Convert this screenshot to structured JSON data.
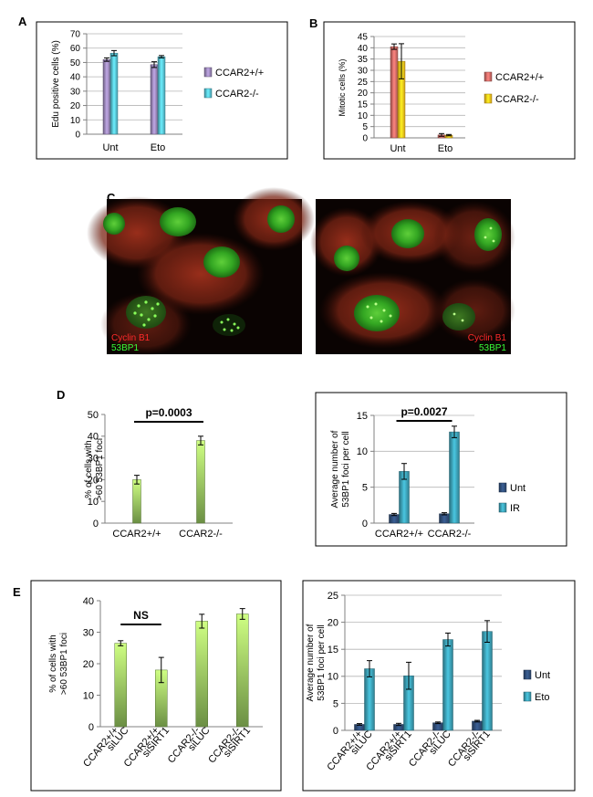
{
  "panels": {
    "A": "A",
    "B": "B",
    "C": "C",
    "D": "D",
    "E": "E"
  },
  "micrographs": {
    "left": {
      "label1": "Cyclin B1",
      "label2": "53BP1",
      "label1_color": "#ff2a2a",
      "label2_color": "#39ff39"
    },
    "right": {
      "label1": "Cyclin B1",
      "label2": "53BP1",
      "label1_color": "#ff2a2a",
      "label2_color": "#39ff39"
    }
  },
  "chart_data": [
    {
      "id": "A",
      "type": "bar",
      "ylabel": "Edu positive cells (%)",
      "ylim": [
        0,
        70
      ],
      "yticks": [
        0,
        10,
        20,
        30,
        40,
        50,
        60,
        70
      ],
      "grid": true,
      "categories": [
        "Unt",
        "Eto"
      ],
      "series": [
        {
          "name": "CCAR2+/+",
          "values": [
            52,
            48.5
          ],
          "errors": [
            1.2,
            2
          ],
          "color": "#9a86b8"
        },
        {
          "name": "CCAR2-/-",
          "values": [
            56.5,
            54
          ],
          "errors": [
            1.8,
            0.8
          ],
          "color": "#56c0d4"
        }
      ],
      "legend": "right"
    },
    {
      "id": "B",
      "type": "bar",
      "ylabel": "Mitotic cells (%)",
      "ylim": [
        0,
        45
      ],
      "yticks": [
        0,
        5,
        10,
        15,
        20,
        25,
        30,
        35,
        40,
        45
      ],
      "grid": true,
      "categories": [
        "Unt",
        "Eto"
      ],
      "series": [
        {
          "name": "CCAR2+/+",
          "values": [
            40.5,
            1.3
          ],
          "errors": [
            1.2,
            0.6
          ],
          "color": "#d06a66"
        },
        {
          "name": "CCAR2-/-",
          "values": [
            34,
            1.2
          ],
          "errors": [
            7.8,
            0.3
          ],
          "color": "#ffc21a"
        }
      ],
      "legend": "right"
    },
    {
      "id": "D1",
      "type": "bar",
      "ylabel": "% of cells with >60 53BP1 foci",
      "ylim": [
        0,
        50
      ],
      "yticks": [
        0,
        10,
        20,
        30,
        40,
        50
      ],
      "grid": false,
      "categories": [
        "CCAR2+/+",
        "CCAR2-/-"
      ],
      "series": [
        {
          "name": "",
          "values": [
            20,
            38
          ],
          "errors": [
            2,
            2
          ],
          "color": "#8fbf5a"
        }
      ],
      "annotation": {
        "text": "p=0.0003",
        "from": 0,
        "to": 1
      }
    },
    {
      "id": "D2",
      "type": "bar",
      "ylabel": "Average number of 53BP1 foci per cell",
      "ylim": [
        0,
        15
      ],
      "yticks": [
        0,
        5,
        10,
        15
      ],
      "grid": true,
      "categories": [
        "CCAR2+/+",
        "CCAR2-/-"
      ],
      "series": [
        {
          "name": "Unt",
          "values": [
            1.2,
            1.3
          ],
          "errors": [
            0.15,
            0.15
          ],
          "color": "#2f4d78"
        },
        {
          "name": "IR",
          "values": [
            7.2,
            12.7
          ],
          "errors": [
            1.1,
            0.8
          ],
          "color": "#3b9fb4"
        }
      ],
      "legend": "right",
      "annotation": {
        "text": "p=0.0027",
        "from": 0,
        "to": 1
      }
    },
    {
      "id": "E1",
      "type": "bar",
      "ylabel": "% of cells with >60 53BP1 foci",
      "ylim": [
        0,
        40
      ],
      "yticks": [
        0,
        10,
        20,
        30,
        40
      ],
      "grid": false,
      "categories": [
        "CCAR2+/+ siLUC",
        "CCAR2+/+ siSIRT1",
        "CCAR2-/- siLUC",
        "CCAR2-/- siSIRT1"
      ],
      "series": [
        {
          "name": "",
          "values": [
            26.5,
            18,
            33.5,
            35.8
          ],
          "errors": [
            0.8,
            4,
            2.2,
            1.7
          ],
          "color": "#8fbf5a"
        }
      ],
      "annotation": {
        "text": "NS",
        "from": 0,
        "to": 1
      }
    },
    {
      "id": "E2",
      "type": "bar",
      "ylabel": "Average number of 53BP1 foci per cell",
      "ylim": [
        0,
        25
      ],
      "yticks": [
        0,
        5,
        10,
        15,
        20,
        25
      ],
      "grid": true,
      "categories": [
        "CCAR2+/+ siLUC",
        "CCAR2+/+ siSIRT1",
        "CCAR2-/- siLUC",
        "CCAR2-/- siSIRT1"
      ],
      "series": [
        {
          "name": "Unt",
          "values": [
            1.1,
            1.1,
            1.4,
            1.7
          ],
          "errors": [
            0.15,
            0.2,
            0.15,
            0.15
          ],
          "color": "#2f4d78"
        },
        {
          "name": "Eto",
          "values": [
            11.4,
            10.1,
            16.8,
            18.3
          ],
          "errors": [
            1.5,
            2.5,
            1.2,
            2
          ],
          "color": "#3b9fb4"
        }
      ],
      "legend": "right"
    }
  ]
}
